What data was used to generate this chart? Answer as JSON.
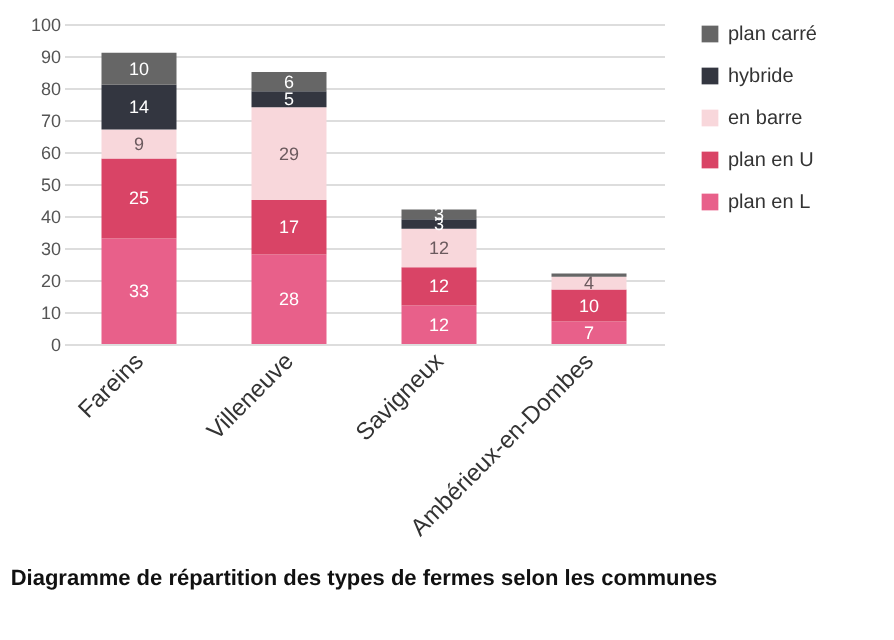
{
  "chart_data": {
    "type": "bar",
    "stacked": true,
    "title": "Diagramme de répartition des types de fermes selon les communes",
    "categories": [
      "Fareins",
      "Villeneuve",
      "Savigneux",
      "Ambérieux-en-Dombes"
    ],
    "series": [
      {
        "name": "plan en L",
        "color": "#e8608a",
        "values": [
          33,
          28,
          12,
          7
        ],
        "value_labels": [
          "33",
          "28",
          "12",
          "7"
        ]
      },
      {
        "name": "plan en U",
        "color": "#d94466",
        "values": [
          25,
          17,
          12,
          10
        ],
        "value_labels": [
          "25",
          "17",
          "12",
          "10"
        ]
      },
      {
        "name": "en barre",
        "color": "#f8d7db",
        "values": [
          9,
          29,
          12,
          4
        ],
        "value_labels": [
          "9",
          "29",
          "12",
          "4"
        ]
      },
      {
        "name": "hybride",
        "color": "#333640",
        "values": [
          14,
          5,
          3,
          0
        ],
        "value_labels": [
          "14",
          "5",
          "3",
          null
        ]
      },
      {
        "name": "plan carré",
        "color": "#666666",
        "values": [
          10,
          6,
          3,
          1
        ],
        "value_labels": [
          "10",
          "6",
          "3",
          null
        ]
      }
    ],
    "ylim": [
      0,
      100
    ],
    "yticks": [
      0,
      10,
      20,
      30,
      40,
      50,
      60,
      70,
      80,
      90,
      100
    ],
    "grid": "y",
    "legend": "right"
  }
}
